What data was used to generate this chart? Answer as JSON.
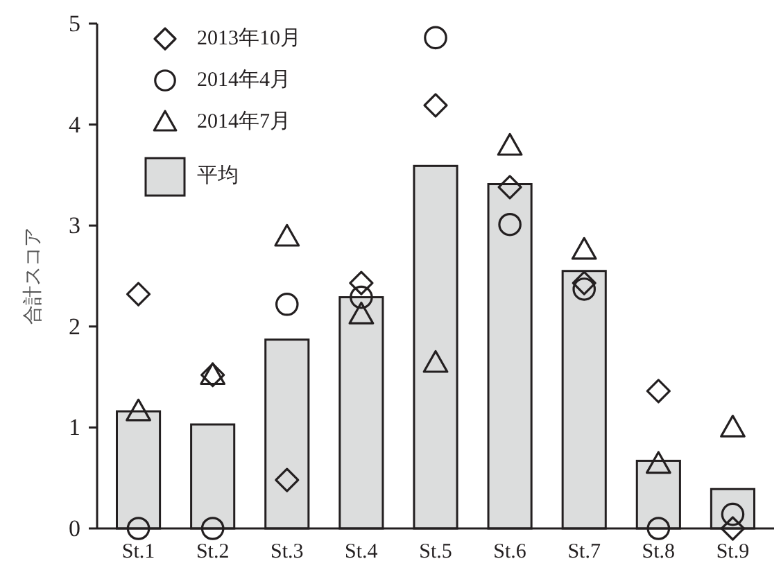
{
  "chart_data": {
    "type": "bar",
    "ylabel": "合計スコア",
    "categories": [
      "St.1",
      "St.2",
      "St.3",
      "St.4",
      "St.5",
      "St.6",
      "St.7",
      "St.8",
      "St.9"
    ],
    "series": [
      {
        "name": "2013年10月",
        "type": "scatter",
        "marker": "diamond",
        "color": "#231f20",
        "values": [
          2.32,
          1.52,
          0.48,
          2.43,
          4.19,
          3.38,
          2.43,
          1.36,
          0
        ]
      },
      {
        "name": "2014年4月",
        "type": "scatter",
        "marker": "circle",
        "color": "#231f20",
        "values": [
          0,
          0,
          2.22,
          2.29,
          4.86,
          3.01,
          2.37,
          0,
          0.14
        ]
      },
      {
        "name": "2014年7月",
        "type": "scatter",
        "marker": "triangle",
        "color": "#231f20",
        "values": [
          1.16,
          1.52,
          2.89,
          2.12,
          1.64,
          3.79,
          2.76,
          0.64,
          1.0
        ]
      },
      {
        "name": "平均",
        "type": "bar",
        "color": "#dcdddd",
        "values": [
          1.16,
          1.03,
          1.87,
          2.29,
          3.59,
          3.41,
          2.55,
          0.67,
          0.39
        ]
      }
    ],
    "ylim": [
      0,
      5
    ],
    "yticks": [
      0,
      1,
      2,
      3,
      4,
      5
    ],
    "grid": false,
    "legend": "top left"
  }
}
